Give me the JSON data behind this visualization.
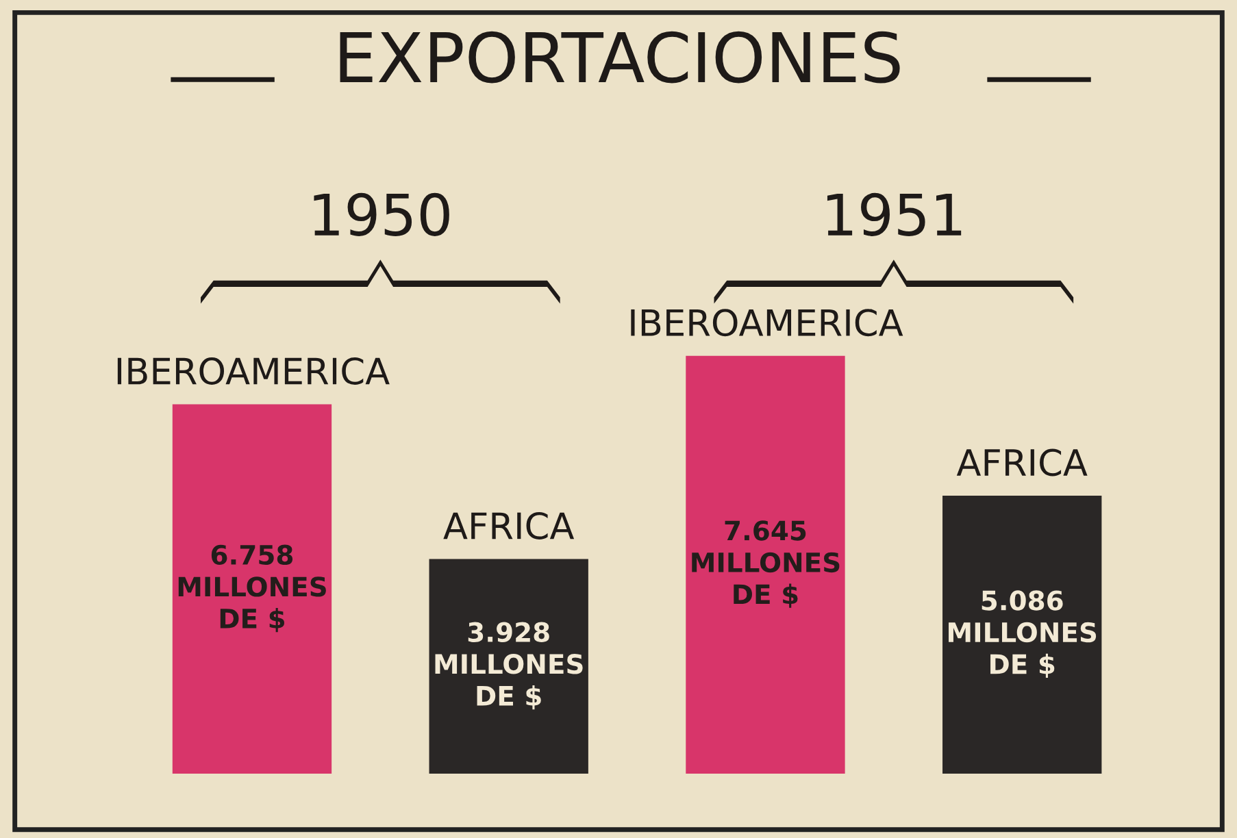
{
  "chart_data": {
    "type": "bar",
    "title": "EXPORTACIONES",
    "categories": [
      "IBEROAMERICA",
      "AFRICA",
      "IBEROAMERICA",
      "AFRICA"
    ],
    "values": [
      6758,
      3928,
      7645,
      5086
    ],
    "colors": [
      "#d8356a",
      "#2a2726",
      "#d8356a",
      "#2a2726"
    ],
    "value_labels": [
      "6.758\nMILLONES\nDE $",
      "3.928\nMILLONES\nDE $",
      "7.645\nMILLONES\nDE $",
      "5.086\nMILLONES\nDE $"
    ],
    "annotations": [
      "1950",
      "1951"
    ]
  }
}
